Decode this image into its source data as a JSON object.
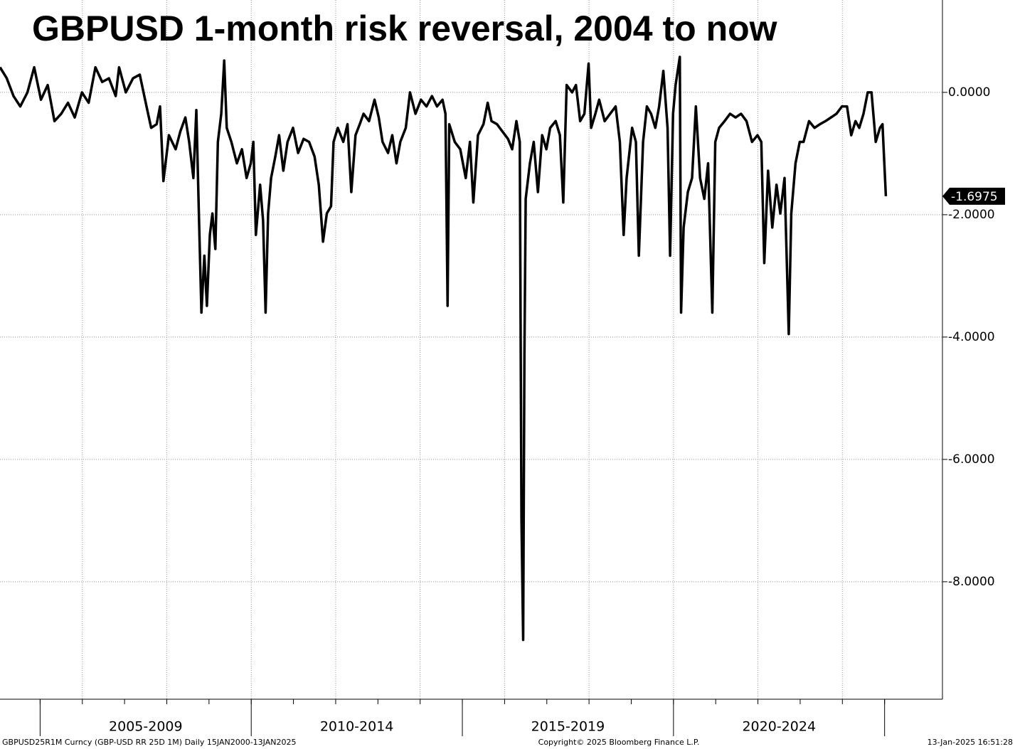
{
  "chart_data": {
    "type": "line",
    "title": "GBPUSD 1-month risk reversal, 2004 to now",
    "footer_left": "GBPUSD25R1M Curncy (GBP-USD RR 25D 1M)  Daily 15JAN2000-13JAN2025",
    "footer_center": "Copyright© 2025 Bloomberg Finance L.P.",
    "footer_right": "13-Jan-2025 16:51:28",
    "xlim": [
      2004.05,
      2026.37
    ],
    "ylim": [
      -9.92,
      1.51
    ],
    "yticks": [
      {
        "value": 0,
        "label": "0.0000"
      },
      {
        "value": -2,
        "label": "-2.0000"
      },
      {
        "value": -4,
        "label": "-4.0000"
      },
      {
        "value": -6,
        "label": "-6.0000"
      },
      {
        "value": -8,
        "label": "-8.0000"
      }
    ],
    "xticks": [
      2005,
      2006,
      2007,
      2008,
      2009,
      2010,
      2011,
      2012,
      2013,
      2014,
      2015,
      2016,
      2017,
      2018,
      2019,
      2020,
      2021,
      2022,
      2023,
      2024,
      2025
    ],
    "xgrid": [
      2006,
      2008,
      2010,
      2012,
      2014,
      2016,
      2018,
      2020,
      2022,
      2024
    ],
    "xgroups": [
      {
        "label": "2005-2009",
        "from": 2005,
        "to": 2010
      },
      {
        "label": "2010-2014",
        "from": 2010,
        "to": 2015
      },
      {
        "label": "2015-2019",
        "from": 2015,
        "to": 2020
      },
      {
        "label": "2020-2024",
        "from": 2020,
        "to": 2025
      }
    ],
    "grid": true,
    "last_value": -1.6975,
    "series": [
      {
        "name": "GBPUSD25R1M Curncy",
        "color": "#000000",
        "x": [
          2004.05,
          2004.21,
          2004.37,
          2004.53,
          2004.7,
          2004.86,
          2005.02,
          2005.18,
          2005.34,
          2005.5,
          2005.66,
          2005.82,
          2005.99,
          2006.15,
          2006.31,
          2006.47,
          2006.63,
          2006.79,
          2006.87,
          2007.03,
          2007.2,
          2007.36,
          2007.52,
          2007.63,
          2007.76,
          2007.84,
          2007.92,
          2008.05,
          2008.21,
          2008.32,
          2008.44,
          2008.53,
          2008.63,
          2008.7,
          2008.76,
          2008.82,
          2008.89,
          2008.95,
          2009.02,
          2009.08,
          2009.15,
          2009.21,
          2009.29,
          2009.36,
          2009.42,
          2009.53,
          2009.66,
          2009.78,
          2009.89,
          2009.99,
          2010.05,
          2010.11,
          2010.21,
          2010.28,
          2010.34,
          2010.4,
          2010.47,
          2010.57,
          2010.66,
          2010.76,
          2010.86,
          2010.99,
          2011.11,
          2011.24,
          2011.37,
          2011.5,
          2011.6,
          2011.7,
          2011.79,
          2011.89,
          2011.95,
          2012.05,
          2012.18,
          2012.28,
          2012.37,
          2012.47,
          2012.57,
          2012.66,
          2012.79,
          2012.92,
          2013.02,
          2013.11,
          2013.24,
          2013.34,
          2013.44,
          2013.53,
          2013.66,
          2013.76,
          2013.89,
          2014.02,
          2014.15,
          2014.28,
          2014.4,
          2014.53,
          2014.6,
          2014.65,
          2014.69,
          2014.82,
          2014.95,
          2015.08,
          2015.18,
          2015.26,
          2015.37,
          2015.5,
          2015.6,
          2015.69,
          2015.82,
          2015.95,
          2016.08,
          2016.18,
          2016.28,
          2016.36,
          2016.4,
          2016.44,
          2016.47,
          2016.5,
          2016.6,
          2016.69,
          2016.79,
          2016.89,
          2016.99,
          2017.08,
          2017.21,
          2017.31,
          2017.39,
          2017.47,
          2017.6,
          2017.69,
          2017.79,
          2017.89,
          2017.99,
          2018.05,
          2018.15,
          2018.24,
          2018.37,
          2018.5,
          2018.63,
          2018.73,
          2018.82,
          2018.89,
          2019.02,
          2019.11,
          2019.18,
          2019.28,
          2019.37,
          2019.47,
          2019.57,
          2019.66,
          2019.76,
          2019.86,
          2019.92,
          2019.99,
          2020.05,
          2020.15,
          2020.18,
          2020.24,
          2020.34,
          2020.44,
          2020.53,
          2020.63,
          2020.73,
          2020.82,
          2020.92,
          2020.99,
          2021.08,
          2021.21,
          2021.34,
          2021.47,
          2021.6,
          2021.73,
          2021.86,
          2021.99,
          2022.08,
          2022.15,
          2022.24,
          2022.34,
          2022.44,
          2022.53,
          2022.63,
          2022.73,
          2022.79,
          2022.89,
          2022.99,
          2023.08,
          2023.21,
          2023.34,
          2023.47,
          2023.6,
          2023.73,
          2023.86,
          2023.99,
          2024.11,
          2024.21,
          2024.31,
          2024.4,
          2024.5,
          2024.6,
          2024.69,
          2024.79,
          2024.89,
          2024.95,
          2025.03
        ],
        "values": [
          0.41,
          0.23,
          -0.06,
          -0.23,
          0,
          0.41,
          -0.12,
          0.12,
          -0.47,
          -0.35,
          -0.17,
          -0.41,
          0,
          -0.17,
          0.41,
          0.17,
          0.23,
          -0.06,
          0.41,
          0,
          0.23,
          0.29,
          -0.23,
          -0.58,
          -0.52,
          -0.23,
          -1.45,
          -0.7,
          -0.93,
          -0.64,
          -0.41,
          -0.81,
          -1.4,
          -0.29,
          -1.98,
          -3.6,
          -2.67,
          -3.49,
          -2.33,
          -1.98,
          -2.56,
          -0.81,
          -0.35,
          0.52,
          -0.58,
          -0.81,
          -1.16,
          -0.93,
          -1.4,
          -1.16,
          -0.81,
          -2.33,
          -1.51,
          -2.09,
          -3.6,
          -1.98,
          -1.4,
          -1.05,
          -0.7,
          -1.28,
          -0.81,
          -0.58,
          -0.99,
          -0.76,
          -0.81,
          -1.05,
          -1.51,
          -2.44,
          -1.98,
          -1.86,
          -0.81,
          -0.58,
          -0.81,
          -0.52,
          -1.63,
          -0.7,
          -0.52,
          -0.35,
          -0.47,
          -0.12,
          -0.41,
          -0.81,
          -0.99,
          -0.7,
          -1.16,
          -0.81,
          -0.58,
          0,
          -0.35,
          -0.12,
          -0.23,
          -0.06,
          -0.23,
          -0.12,
          -0.35,
          -3.49,
          -0.52,
          -0.81,
          -0.93,
          -1.4,
          -0.81,
          -1.8,
          -0.7,
          -0.52,
          -0.17,
          -0.47,
          -0.52,
          -0.64,
          -0.76,
          -0.93,
          -0.47,
          -0.81,
          -6.98,
          -8.95,
          -4.3,
          -1.74,
          -1.16,
          -0.81,
          -1.63,
          -0.7,
          -0.93,
          -0.58,
          -0.47,
          -0.7,
          -1.8,
          0.12,
          0,
          0.12,
          -0.47,
          -0.35,
          0.47,
          -0.58,
          -0.35,
          -0.12,
          -0.47,
          -0.35,
          -0.23,
          -0.81,
          -2.33,
          -1.4,
          -0.58,
          -0.81,
          -2.67,
          -0.81,
          -0.23,
          -0.35,
          -0.58,
          -0.23,
          0.35,
          -0.58,
          -2.67,
          -0.35,
          0.12,
          0.58,
          -3.6,
          -2.21,
          -1.63,
          -1.4,
          -0.23,
          -1.4,
          -1.74,
          -1.16,
          -3.6,
          -0.81,
          -0.58,
          -0.47,
          -0.35,
          -0.41,
          -0.35,
          -0.47,
          -0.81,
          -0.7,
          -0.81,
          -2.79,
          -1.28,
          -2.21,
          -1.51,
          -1.98,
          -1.4,
          -3.95,
          -1.98,
          -1.16,
          -0.81,
          -0.81,
          -0.47,
          -0.58,
          -0.52,
          -0.47,
          -0.41,
          -0.35,
          -0.23,
          -0.23,
          -0.7,
          -0.47,
          -0.58,
          -0.35,
          0,
          0,
          -0.81,
          -0.58,
          -0.52,
          -1.6975
        ]
      }
    ]
  }
}
